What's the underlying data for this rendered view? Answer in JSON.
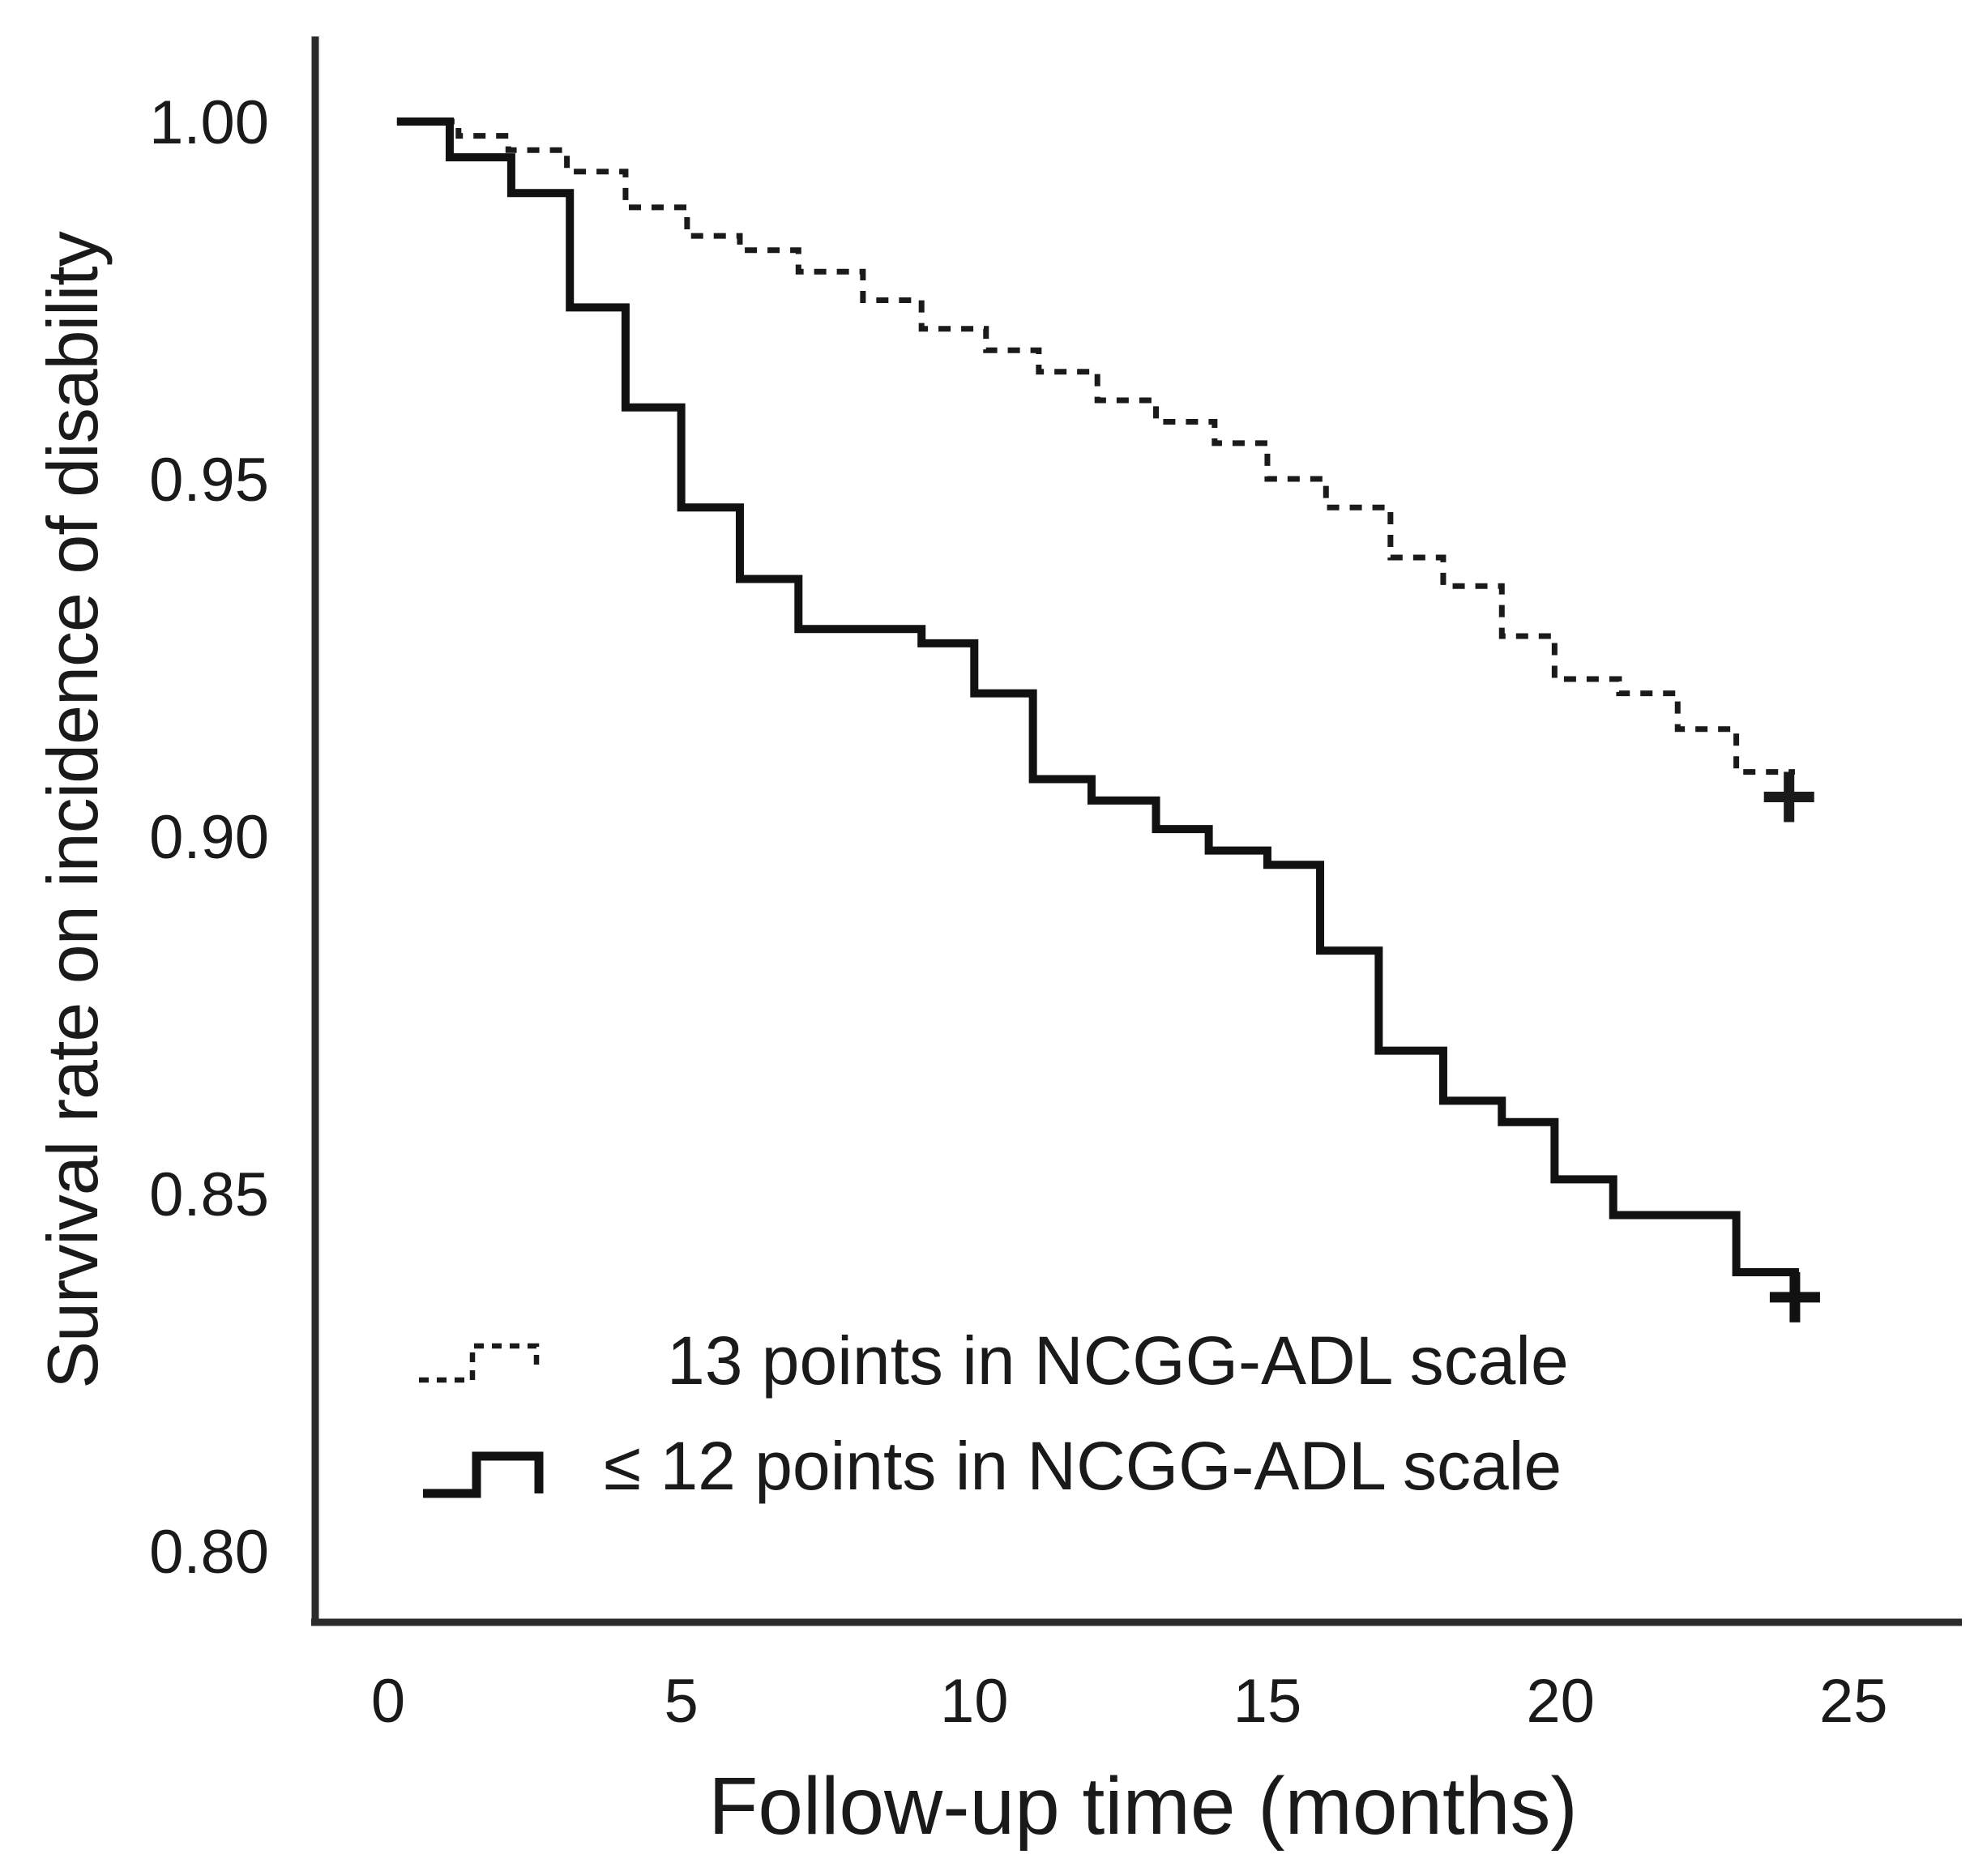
{
  "figure": {
    "background": "#ffffff",
    "text_color": "#1a1a1a",
    "axis_color": "#2b2b2b"
  },
  "chart_data": {
    "type": "line",
    "subtype": "kaplan-meier-step-curve",
    "title": "",
    "xlabel": "Follow-up time (months)",
    "ylabel": "Survival rate on incidence of disability",
    "xlim": [
      0,
      25
    ],
    "ylim": [
      0.8,
      1.0
    ],
    "x_ticks": [
      0,
      5,
      10,
      15,
      20,
      25
    ],
    "y_ticks": [
      {
        "value": 1.0,
        "label": "1.00"
      },
      {
        "value": 0.95,
        "label": "0.95"
      },
      {
        "value": 0.9,
        "label": "0.90"
      },
      {
        "value": 0.85,
        "label": "0.85"
      },
      {
        "value": 0.8,
        "label": "0.80"
      }
    ],
    "grid": false,
    "legend_position": "inside-bottom-left",
    "series": [
      {
        "name": "13 points in NCGG-ADL scale",
        "line_style": "dotted",
        "color": "#1a1a1a",
        "steps": [
          [
            0.15,
            1.0
          ],
          [
            1.2,
            0.998
          ],
          [
            2.05,
            0.996
          ],
          [
            3.05,
            0.993
          ],
          [
            4.05,
            0.988
          ],
          [
            5.1,
            0.984
          ],
          [
            6.0,
            0.982
          ],
          [
            7.0,
            0.979
          ],
          [
            8.1,
            0.975
          ],
          [
            9.1,
            0.971
          ],
          [
            10.2,
            0.968
          ],
          [
            11.1,
            0.965
          ],
          [
            12.1,
            0.961
          ],
          [
            13.1,
            0.958
          ],
          [
            14.1,
            0.955
          ],
          [
            15.0,
            0.95
          ],
          [
            16.0,
            0.946
          ],
          [
            17.1,
            0.939
          ],
          [
            18.0,
            0.935
          ],
          [
            19.0,
            0.928
          ],
          [
            19.9,
            0.922
          ],
          [
            21.0,
            0.92
          ],
          [
            22.0,
            0.915
          ],
          [
            23.0,
            0.909
          ]
        ],
        "end_time": 24.0,
        "censor_mark": {
          "t": 23.9,
          "v": 0.9055,
          "symbol": "+"
        }
      },
      {
        "name": "≤ 12 points in NCGG-ADL scale",
        "line_style": "solid",
        "color": "#111111",
        "steps": [
          [
            0.15,
            1.0
          ],
          [
            1.05,
            0.995
          ],
          [
            2.1,
            0.99
          ],
          [
            3.1,
            0.974
          ],
          [
            4.05,
            0.96
          ],
          [
            5.0,
            0.946
          ],
          [
            6.0,
            0.936
          ],
          [
            7.0,
            0.929
          ],
          [
            9.1,
            0.927
          ],
          [
            10.0,
            0.92
          ],
          [
            11.0,
            0.908
          ],
          [
            12.0,
            0.905
          ],
          [
            13.1,
            0.901
          ],
          [
            14.0,
            0.898
          ],
          [
            15.0,
            0.896
          ],
          [
            15.9,
            0.884
          ],
          [
            16.9,
            0.87
          ],
          [
            18.0,
            0.863
          ],
          [
            19.0,
            0.86
          ],
          [
            19.9,
            0.852
          ],
          [
            20.9,
            0.847
          ],
          [
            23.0,
            0.839
          ]
        ],
        "end_time": 24.0,
        "end_drop_value": 0.8355,
        "censor_mark": {
          "t": 24.0,
          "v": 0.8355,
          "symbol": "+"
        }
      }
    ]
  }
}
